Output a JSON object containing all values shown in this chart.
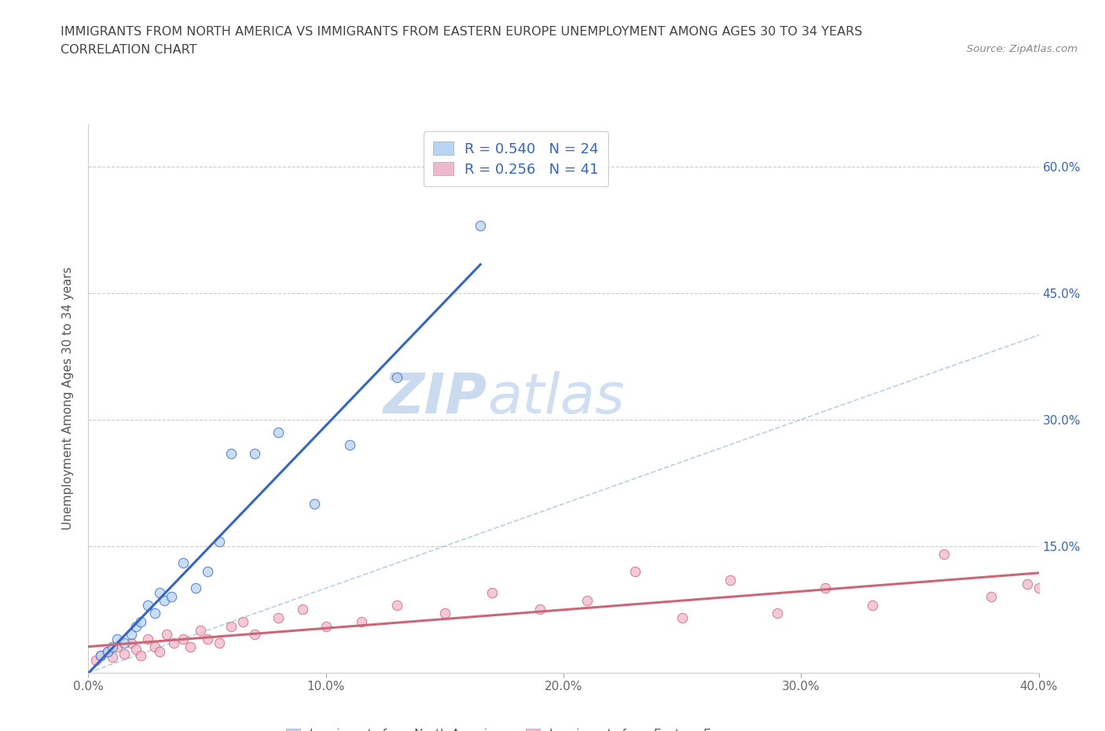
{
  "title_line1": "IMMIGRANTS FROM NORTH AMERICA VS IMMIGRANTS FROM EASTERN EUROPE UNEMPLOYMENT AMONG AGES 30 TO 34 YEARS",
  "title_line2": "CORRELATION CHART",
  "source_text": "Source: ZipAtlas.com",
  "ylabel": "Unemployment Among Ages 30 to 34 years",
  "watermark_zip": "ZIP",
  "watermark_atlas": "atlas",
  "xlim": [
    0.0,
    0.4
  ],
  "ylim": [
    0.0,
    0.65
  ],
  "xticks": [
    0.0,
    0.1,
    0.2,
    0.3,
    0.4
  ],
  "xtick_labels": [
    "0.0%",
    "",
    "",
    "",
    "40.0%"
  ],
  "yticks": [
    0.0,
    0.15,
    0.3,
    0.45,
    0.6
  ],
  "ytick_labels_right": [
    "",
    "15.0%",
    "30.0%",
    "45.0%",
    "60.0%"
  ],
  "color_blue": "#b8d4f0",
  "color_pink": "#f0b8cc",
  "color_blue_line": "#3366cc",
  "color_pink_line": "#cc6677",
  "color_diag": "#99bbdd",
  "north_america_x": [
    0.005,
    0.008,
    0.01,
    0.012,
    0.015,
    0.018,
    0.02,
    0.022,
    0.025,
    0.028,
    0.03,
    0.032,
    0.035,
    0.04,
    0.045,
    0.05,
    0.055,
    0.06,
    0.07,
    0.08,
    0.095,
    0.11,
    0.13,
    0.165
  ],
  "north_america_y": [
    0.02,
    0.025,
    0.03,
    0.04,
    0.035,
    0.045,
    0.055,
    0.06,
    0.08,
    0.07,
    0.095,
    0.085,
    0.09,
    0.13,
    0.1,
    0.12,
    0.155,
    0.26,
    0.26,
    0.285,
    0.2,
    0.27,
    0.35,
    0.53
  ],
  "eastern_europe_x": [
    0.003,
    0.005,
    0.008,
    0.01,
    0.012,
    0.015,
    0.018,
    0.02,
    0.022,
    0.025,
    0.028,
    0.03,
    0.033,
    0.036,
    0.04,
    0.043,
    0.047,
    0.05,
    0.055,
    0.06,
    0.065,
    0.07,
    0.08,
    0.09,
    0.1,
    0.115,
    0.13,
    0.15,
    0.17,
    0.19,
    0.21,
    0.23,
    0.25,
    0.27,
    0.29,
    0.31,
    0.33,
    0.36,
    0.38,
    0.395,
    0.4
  ],
  "eastern_europe_y": [
    0.015,
    0.02,
    0.025,
    0.018,
    0.03,
    0.022,
    0.035,
    0.028,
    0.02,
    0.04,
    0.03,
    0.025,
    0.045,
    0.035,
    0.04,
    0.03,
    0.05,
    0.04,
    0.035,
    0.055,
    0.06,
    0.045,
    0.065,
    0.075,
    0.055,
    0.06,
    0.08,
    0.07,
    0.095,
    0.075,
    0.085,
    0.12,
    0.065,
    0.11,
    0.07,
    0.1,
    0.08,
    0.14,
    0.09,
    0.105,
    0.1
  ]
}
